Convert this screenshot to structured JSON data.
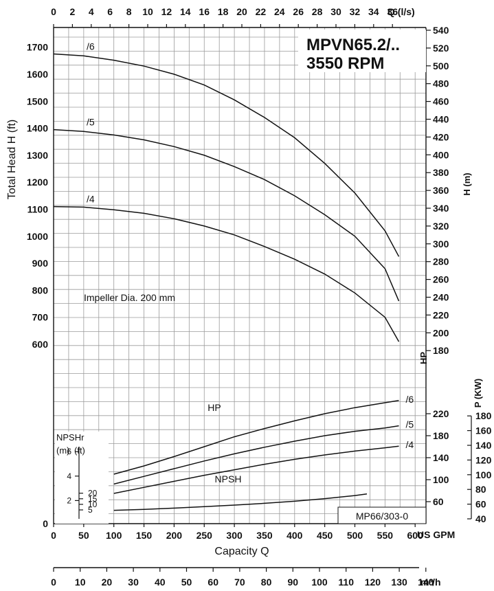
{
  "chart_data": {
    "type": "line",
    "title": "MPVN65.2/..",
    "subtitle": "3550 RPM",
    "reference": "MP66/303-0",
    "annotation": "Impeller Dia. 200 mm",
    "grid": true,
    "x_axes": {
      "us_gpm": {
        "label": "Capacity Q",
        "unit": "US GPM",
        "range": [
          0,
          600
        ],
        "ticks": [
          "0",
          "50",
          "100",
          "150",
          "200",
          "250",
          "300",
          "350",
          "400",
          "450",
          "500",
          "550",
          "600"
        ]
      },
      "ls": {
        "unit": "Q (l/s)",
        "ticks": [
          "0",
          "2",
          "4",
          "6",
          "8",
          "10",
          "12",
          "14",
          "16",
          "18",
          "20",
          "22",
          "24",
          "26",
          "28",
          "30",
          "32",
          "34",
          "36"
        ]
      },
      "m3h": {
        "unit": "m³/h",
        "ticks": [
          "0",
          "10",
          "20",
          "30",
          "40",
          "50",
          "60",
          "70",
          "80",
          "90",
          "100",
          "110",
          "120",
          "130",
          "140"
        ]
      }
    },
    "head_panel": {
      "ylabel": "Total Head H (ft)",
      "ylabel_right": "H (m)",
      "yticks_ft": [
        "600",
        "700",
        "800",
        "900",
        "1000",
        "1100",
        "1200",
        "1300",
        "1400",
        "1500",
        "1600",
        "1700"
      ],
      "yticks_m": [
        "180",
        "200",
        "220",
        "240",
        "260",
        "280",
        "300",
        "320",
        "340",
        "360",
        "380",
        "400",
        "420",
        "440",
        "460",
        "480",
        "500",
        "520",
        "540"
      ],
      "series": [
        {
          "name": "/6",
          "x": [
            0,
            50,
            100,
            150,
            200,
            250,
            300,
            350,
            400,
            450,
            500,
            550,
            573
          ],
          "y": [
            1675,
            1668,
            1652,
            1630,
            1600,
            1560,
            1505,
            1440,
            1365,
            1270,
            1160,
            1020,
            925
          ]
        },
        {
          "name": "/5",
          "x": [
            0,
            50,
            100,
            150,
            200,
            250,
            300,
            350,
            400,
            450,
            500,
            550,
            573
          ],
          "y": [
            1395,
            1388,
            1375,
            1357,
            1332,
            1300,
            1258,
            1210,
            1150,
            1080,
            1000,
            880,
            760
          ]
        },
        {
          "name": "/4",
          "x": [
            0,
            50,
            100,
            150,
            200,
            250,
            300,
            350,
            400,
            450,
            500,
            550,
            573
          ],
          "y": [
            1110,
            1108,
            1098,
            1085,
            1065,
            1038,
            1005,
            962,
            915,
            860,
            790,
            700,
            610
          ]
        }
      ]
    },
    "power_panel": {
      "label": "HP",
      "ylabel_kw": "P (KW)",
      "yticks_hp": [
        "60",
        "100",
        "140",
        "180",
        "220"
      ],
      "yticks_kw": [
        "40",
        "60",
        "80",
        "100",
        "120",
        "140",
        "160",
        "180"
      ],
      "series": [
        {
          "name": "/6",
          "x": [
            100,
            150,
            200,
            250,
            300,
            350,
            400,
            450,
            500,
            550,
            573
          ],
          "y": [
            110,
            125,
            142,
            160,
            178,
            193,
            207,
            220,
            231,
            240,
            244
          ]
        },
        {
          "name": "/5",
          "x": [
            100,
            150,
            200,
            250,
            300,
            350,
            400,
            450,
            500,
            550,
            573
          ],
          "y": [
            92,
            106,
            120,
            134,
            147,
            159,
            170,
            180,
            188,
            194,
            198
          ]
        },
        {
          "name": "/4",
          "x": [
            100,
            150,
            200,
            250,
            300,
            350,
            400,
            450,
            500,
            550,
            573
          ],
          "y": [
            75,
            86,
            97,
            108,
            118,
            128,
            137,
            145,
            152,
            158,
            161
          ]
        }
      ]
    },
    "npsh_panel": {
      "label": "NPSH",
      "header": "NPSHr",
      "units_m": "(m)",
      "units_ft": "(ft)",
      "ticks_ft": [
        "5",
        "10",
        "15",
        "20"
      ],
      "ticks_m": [
        "2",
        "4",
        "6"
      ],
      "series": [
        {
          "name": "NPSH",
          "x": [
            100,
            150,
            200,
            250,
            300,
            350,
            400,
            450,
            500,
            520
          ],
          "y": [
            4.6,
            5.5,
            6.6,
            7.9,
            9.3,
            10.9,
            12.8,
            15.1,
            17.9,
            19.3
          ]
        }
      ]
    }
  }
}
